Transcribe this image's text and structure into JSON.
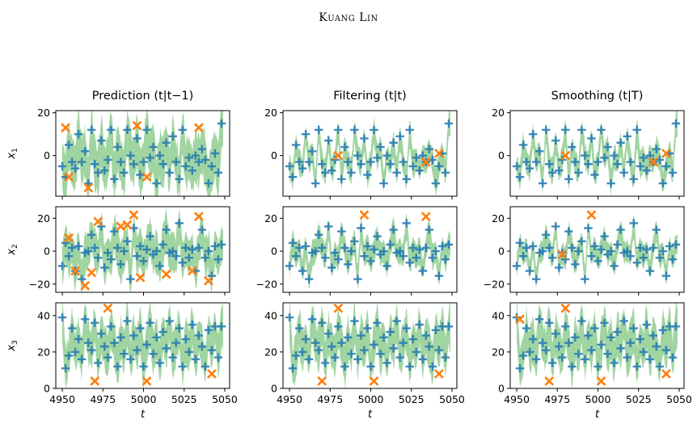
{
  "header": "Kuang Lin",
  "colors": {
    "band": "#8fcd8f",
    "plus": "#1f77b4",
    "cross": "#ff7f0e",
    "frame": "#000000"
  },
  "columns": [
    {
      "title": "Prediction (t|t−1)"
    },
    {
      "title": "Filtering (t|t)"
    },
    {
      "title": "Smoothing (t|T)"
    }
  ],
  "rows": [
    {
      "ylabel": "x1",
      "ylabel_main": "x",
      "ylabel_sub": "1",
      "ylim": [
        -19,
        21
      ],
      "yticks": [
        20,
        0
      ],
      "tick_labels": [
        "20",
        "0"
      ]
    },
    {
      "ylabel": "x2",
      "ylabel_main": "x",
      "ylabel_sub": "2",
      "ylim": [
        -25,
        27
      ],
      "yticks": [
        20,
        0,
        -20
      ],
      "tick_labels": [
        "20",
        "0",
        "−20"
      ]
    },
    {
      "ylabel": "x3",
      "ylabel_main": "x",
      "ylabel_sub": "3",
      "ylim": [
        0,
        47
      ],
      "yticks": [
        40,
        20,
        0
      ],
      "tick_labels": [
        "40",
        "20",
        "0"
      ]
    }
  ],
  "xaxis": {
    "label": "t",
    "ticks": [
      4950,
      4975,
      5000,
      5025,
      5050
    ],
    "tick_labels": [
      "4950",
      "4975",
      "5000",
      "5025",
      "5050"
    ],
    "xlim": [
      4946,
      5053
    ]
  },
  "chart_data": {
    "type": "scatter",
    "description": "3x3 grid of small multiples: per-state rows x1, x2, x3; columns Prediction (t|t-1), Filtering (t|t), Smoothing (t|T). Green band = uncertainty interval, blue + = observed states, orange x = states outside the interval.",
    "x_range": [
      4950,
      5049
    ],
    "series_names": [
      "band",
      "plus",
      "cross"
    ],
    "plus_points": {
      "x1": [
        [
          4950,
          -5
        ],
        [
          4952,
          -10
        ],
        [
          4954,
          5
        ],
        [
          4956,
          -3
        ],
        [
          4958,
          -6
        ],
        [
          4960,
          10
        ],
        [
          4962,
          -3
        ],
        [
          4964,
          2
        ],
        [
          4966,
          -13
        ],
        [
          4968,
          12
        ],
        [
          4970,
          -4
        ],
        [
          4972,
          -8
        ],
        [
          4974,
          7
        ],
        [
          4976,
          -7
        ],
        [
          4978,
          -2
        ],
        [
          4980,
          12
        ],
        [
          4982,
          -11
        ],
        [
          4984,
          4
        ],
        [
          4986,
          -3
        ],
        [
          4988,
          -8
        ],
        [
          4990,
          12
        ],
        [
          4992,
          0
        ],
        [
          4994,
          -4
        ],
        [
          4996,
          8
        ],
        [
          4998,
          -9
        ],
        [
          5000,
          -3
        ],
        [
          5002,
          12
        ],
        [
          5004,
          -1
        ],
        [
          5006,
          4
        ],
        [
          5008,
          -13
        ],
        [
          5010,
          0
        ],
        [
          5012,
          -4
        ],
        [
          5014,
          6
        ],
        [
          5016,
          -8
        ],
        [
          5018,
          9
        ],
        [
          5020,
          -3
        ],
        [
          5022,
          -11
        ],
        [
          5024,
          12
        ],
        [
          5026,
          -5
        ],
        [
          5028,
          -1
        ],
        [
          5030,
          -7
        ],
        [
          5032,
          0
        ],
        [
          5034,
          -3
        ],
        [
          5036,
          3
        ],
        [
          5038,
          -2
        ],
        [
          5040,
          -13
        ],
        [
          5042,
          -5
        ],
        [
          5044,
          1
        ],
        [
          5046,
          -8
        ],
        [
          5048,
          15
        ]
      ],
      "x2": [
        [
          4950,
          -9
        ],
        [
          4952,
          5
        ],
        [
          4954,
          -3
        ],
        [
          4956,
          2
        ],
        [
          4958,
          -12
        ],
        [
          4960,
          3
        ],
        [
          4962,
          -17
        ],
        [
          4964,
          -1
        ],
        [
          4966,
          0
        ],
        [
          4968,
          10
        ],
        [
          4970,
          2
        ],
        [
          4972,
          -4
        ],
        [
          4974,
          15
        ],
        [
          4976,
          -10
        ],
        [
          4978,
          -1
        ],
        [
          4980,
          -5
        ],
        [
          4982,
          12
        ],
        [
          4984,
          2
        ],
        [
          4986,
          -8
        ],
        [
          4988,
          0
        ],
        [
          4990,
          6
        ],
        [
          4992,
          -17
        ],
        [
          4994,
          14
        ],
        [
          4996,
          -3
        ],
        [
          4998,
          3
        ],
        [
          5000,
          -6
        ],
        [
          5002,
          1
        ],
        [
          5004,
          9
        ],
        [
          5006,
          -2
        ],
        [
          5008,
          0
        ],
        [
          5010,
          -9
        ],
        [
          5012,
          4
        ],
        [
          5014,
          13
        ],
        [
          5016,
          -1
        ],
        [
          5018,
          0
        ],
        [
          5020,
          -3
        ],
        [
          5022,
          17
        ],
        [
          5024,
          -7
        ],
        [
          5026,
          2
        ],
        [
          5028,
          -4
        ],
        [
          5030,
          1
        ],
        [
          5032,
          -12
        ],
        [
          5034,
          2
        ],
        [
          5036,
          13
        ],
        [
          5038,
          -4
        ],
        [
          5040,
          0
        ],
        [
          5042,
          -15
        ],
        [
          5044,
          3
        ],
        [
          5046,
          -5
        ],
        [
          5048,
          4
        ]
      ],
      "x3": [
        [
          4950,
          39
        ],
        [
          4952,
          11
        ],
        [
          4954,
          18
        ],
        [
          4956,
          33
        ],
        [
          4958,
          20
        ],
        [
          4960,
          27
        ],
        [
          4962,
          16
        ],
        [
          4964,
          38
        ],
        [
          4966,
          25
        ],
        [
          4968,
          21
        ],
        [
          4970,
          36
        ],
        [
          4972,
          14
        ],
        [
          4974,
          30
        ],
        [
          4976,
          23
        ],
        [
          4978,
          17
        ],
        [
          4980,
          34
        ],
        [
          4982,
          25
        ],
        [
          4984,
          12
        ],
        [
          4986,
          28
        ],
        [
          4988,
          19
        ],
        [
          4990,
          37
        ],
        [
          4992,
          16
        ],
        [
          4994,
          29
        ],
        [
          4996,
          21
        ],
        [
          4998,
          33
        ],
        [
          5000,
          12
        ],
        [
          5002,
          24
        ],
        [
          5004,
          36
        ],
        [
          5006,
          19
        ],
        [
          5008,
          28
        ],
        [
          5010,
          14
        ],
        [
          5012,
          31
        ],
        [
          5014,
          22
        ],
        [
          5016,
          37
        ],
        [
          5018,
          17
        ],
        [
          5020,
          25
        ],
        [
          5022,
          33
        ],
        [
          5024,
          12
        ],
        [
          5026,
          27
        ],
        [
          5028,
          20
        ],
        [
          5030,
          35
        ],
        [
          5032,
          16
        ],
        [
          5034,
          29
        ],
        [
          5036,
          23
        ],
        [
          5038,
          12
        ],
        [
          5040,
          32
        ],
        [
          5042,
          21
        ],
        [
          5044,
          34
        ],
        [
          5046,
          17
        ],
        [
          5048,
          34
        ]
      ]
    },
    "cross_points": {
      "prediction": {
        "x1": [
          [
            4952,
            13
          ],
          [
            4954,
            -10
          ],
          [
            4966,
            -15
          ],
          [
            4996,
            14
          ],
          [
            5002,
            -10
          ],
          [
            5034,
            13
          ]
        ],
        "x2": [
          [
            4954,
            8
          ],
          [
            4958,
            -12
          ],
          [
            4964,
            -21
          ],
          [
            4968,
            -13
          ],
          [
            4972,
            18
          ],
          [
            4986,
            15
          ],
          [
            4990,
            16
          ],
          [
            4994,
            22
          ],
          [
            4998,
            -16
          ],
          [
            5014,
            -14
          ],
          [
            5030,
            -12
          ],
          [
            5034,
            21
          ],
          [
            5040,
            -18
          ]
        ],
        "x3": [
          [
            4970,
            4
          ],
          [
            4978,
            44
          ],
          [
            5002,
            4
          ],
          [
            5042,
            8
          ]
        ]
      },
      "filtering": {
        "x1": [
          [
            4980,
            0
          ],
          [
            5034,
            -3
          ],
          [
            5042,
            1
          ]
        ],
        "x2": [
          [
            4996,
            22
          ],
          [
            5034,
            21
          ]
        ],
        "x3": [
          [
            4970,
            4
          ],
          [
            4980,
            44
          ],
          [
            5002,
            4
          ],
          [
            5042,
            8
          ]
        ]
      },
      "smoothing": {
        "x1": [
          [
            4980,
            0
          ],
          [
            5034,
            -3
          ],
          [
            5042,
            1
          ]
        ],
        "x2": [
          [
            4978,
            -2
          ],
          [
            4996,
            22
          ]
        ],
        "x3": [
          [
            4952,
            38
          ],
          [
            4970,
            4
          ],
          [
            4980,
            44
          ],
          [
            5002,
            4
          ],
          [
            5042,
            8
          ]
        ]
      }
    },
    "band_halfwidth": {
      "prediction": [
        14,
        14,
        14
      ],
      "filtering": [
        7,
        9,
        14
      ],
      "smoothing": [
        7,
        8,
        14
      ]
    }
  }
}
